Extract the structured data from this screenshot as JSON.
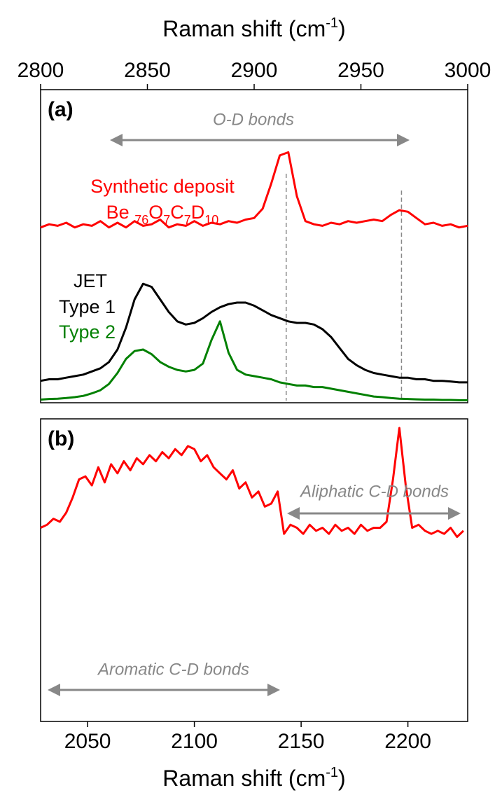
{
  "chart_data": [
    {
      "type": "line",
      "panel_label": "(a)",
      "xlabel": {
        "text": "Raman shift (cm",
        "sup": "-1",
        "tail": ")"
      },
      "xaxis_position": "top",
      "xlim": [
        2800,
        3000
      ],
      "xticks": [
        2800,
        2850,
        2900,
        2950,
        3000
      ],
      "ylim": [
        0,
        100
      ],
      "x": [
        2800,
        2804,
        2808,
        2812,
        2816,
        2820,
        2824,
        2828,
        2832,
        2836,
        2840,
        2844,
        2848,
        2852,
        2856,
        2860,
        2864,
        2868,
        2872,
        2876,
        2880,
        2884,
        2888,
        2892,
        2896,
        2900,
        2904,
        2908,
        2912,
        2916,
        2920,
        2924,
        2928,
        2932,
        2936,
        2940,
        2944,
        2948,
        2952,
        2956,
        2960,
        2964,
        2968,
        2972,
        2976,
        2980,
        2984,
        2988,
        2992,
        2996,
        3000
      ],
      "series": [
        {
          "name": "Synthetic deposit",
          "color": "#ff0000",
          "formula": [
            {
              "text": "Be ",
              "sub": "76"
            },
            {
              "text": "O",
              "sub": "7"
            },
            {
              "text": "C",
              "sub": "7"
            },
            {
              "text": "D",
              "sub": "10"
            }
          ],
          "values": [
            56,
            57,
            56.5,
            57.5,
            56,
            57,
            56.5,
            58,
            56,
            57.5,
            56,
            58,
            56.5,
            57,
            58.5,
            56,
            57,
            56.5,
            58,
            56.5,
            57.5,
            57,
            58,
            57.5,
            58.5,
            59,
            62,
            70,
            79,
            80,
            66,
            58,
            57,
            56.5,
            57.5,
            57,
            58,
            57.5,
            58,
            58.5,
            58,
            60,
            61.5,
            61,
            59,
            57,
            57.5,
            56.5,
            57,
            56,
            56.5
          ]
        },
        {
          "name": "Type 1",
          "group": "JET",
          "color": "#000000",
          "values": [
            7,
            7.5,
            7.5,
            8,
            8.5,
            9,
            10,
            11,
            13,
            17,
            24,
            33,
            38,
            37,
            33,
            29,
            26,
            25,
            25.5,
            27,
            29,
            30.5,
            31.5,
            32,
            32,
            31,
            29.5,
            28,
            27,
            26,
            25.5,
            25.5,
            25,
            23.5,
            21,
            17.5,
            14,
            12,
            10.5,
            9.5,
            9,
            8.5,
            8,
            8,
            7.5,
            7.5,
            7,
            7,
            6.8,
            6.5,
            6.5
          ]
        },
        {
          "name": "Type 2",
          "color": "#008000",
          "values": [
            1,
            1.2,
            1.3,
            1.5,
            1.8,
            2.2,
            3,
            4,
            6,
            9.5,
            14,
            16.5,
            17,
            15.5,
            13,
            11.5,
            10.5,
            10,
            10.5,
            12.5,
            20,
            26,
            16,
            10.5,
            9,
            8.5,
            8,
            7.5,
            6.5,
            6,
            5.5,
            5.5,
            5,
            5,
            4.5,
            4,
            3.5,
            3,
            2.5,
            2,
            1.8,
            1.5,
            1.3,
            1.2,
            1.1,
            1,
            1,
            0.9,
            0.9,
            0.8,
            0.8
          ]
        }
      ],
      "vlines": [
        2915,
        2969
      ],
      "annotations": [
        "O-D bonds"
      ]
    },
    {
      "type": "line",
      "panel_label": "(b)",
      "xlabel": {
        "text": "Raman shift (cm",
        "sup": "-1",
        "tail": ")"
      },
      "xaxis_position": "bottom",
      "xlim": [
        2028,
        2228
      ],
      "xticks": [
        2050,
        2100,
        2150,
        2200
      ],
      "ylim": [
        0,
        100
      ],
      "x": [
        2028,
        2031,
        2034,
        2037,
        2040,
        2043,
        2046,
        2049,
        2052,
        2055,
        2058,
        2061,
        2064,
        2067,
        2070,
        2073,
        2076,
        2079,
        2082,
        2085,
        2088,
        2091,
        2094,
        2097,
        2100,
        2103,
        2106,
        2109,
        2112,
        2115,
        2118,
        2121,
        2124,
        2127,
        2130,
        2133,
        2136,
        2139,
        2142,
        2145,
        2148,
        2151,
        2154,
        2157,
        2160,
        2163,
        2166,
        2169,
        2172,
        2175,
        2178,
        2181,
        2184,
        2187,
        2190,
        2193,
        2196,
        2199,
        2202,
        2205,
        2208,
        2211,
        2214,
        2217,
        2220,
        2223,
        2226
      ],
      "series": [
        {
          "color": "#ff0000",
          "values": [
            64,
            65,
            67,
            66,
            69,
            74,
            80,
            81,
            78,
            84,
            79,
            85,
            82,
            86,
            83,
            87,
            85,
            88,
            86,
            89,
            87,
            90,
            88,
            91,
            90,
            86,
            88,
            84,
            82,
            80,
            83,
            77,
            79,
            74,
            76,
            71,
            72,
            76,
            62,
            65,
            64,
            62,
            65,
            63,
            64,
            62,
            65,
            63,
            64,
            62,
            65,
            63,
            64,
            64,
            66,
            80,
            97,
            78,
            64,
            65,
            63,
            62,
            63,
            62,
            64,
            61,
            63
          ]
        }
      ],
      "annotations": [
        "Aliphatic C-D bonds",
        "Aromatic C-D bonds"
      ]
    }
  ]
}
